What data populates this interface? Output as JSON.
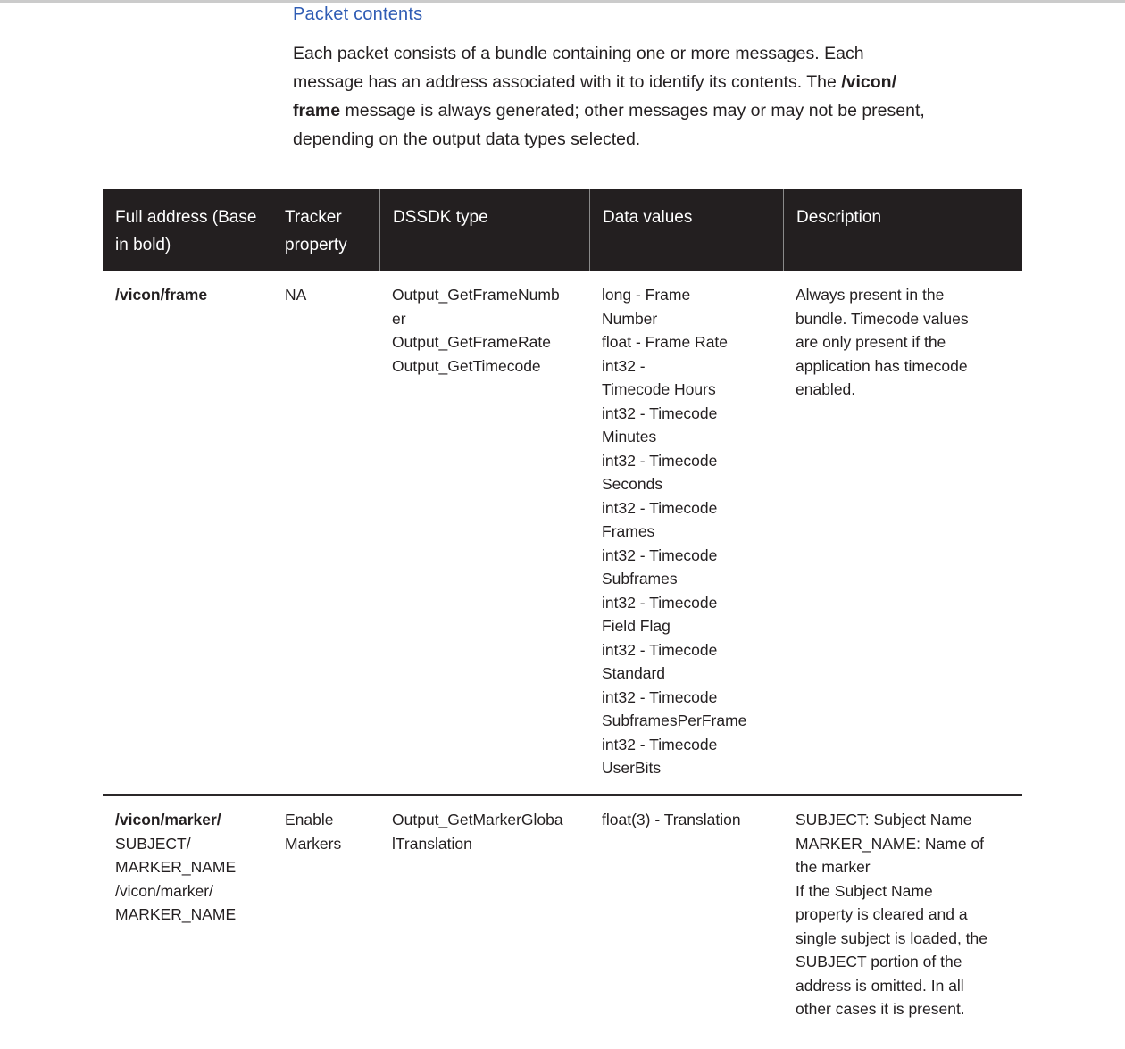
{
  "page": {
    "heading": "Packet contents",
    "intro": {
      "line1": "Each packet consists of a bundle containing one or more messages. Each",
      "line2_pre": "message has an address associated with it to identify its contents. The ",
      "line2_bold": "/vicon/",
      "line3_bold": "frame",
      "line3_post": " message is always generated; other messages may or may not be present,",
      "line4": "depending on the output data types selected."
    },
    "colors": {
      "accent_blue": "#2f5cb4",
      "table_header_bg": "#231f20",
      "body_text": "#231f20",
      "header_separator": "#8a8a8a",
      "row_divider": "#2b2829",
      "top_strip": "#cbcbcb"
    }
  },
  "table": {
    "headers": [
      "Full address (Base in bold)",
      "Tracker property",
      "DSSDK type",
      "Data values",
      "Description"
    ],
    "rows": [
      {
        "full_address_base": "/vicon/frame",
        "full_address_rest": "",
        "tracker_property": "NA",
        "dssdk_type": "Output_GetFrameNumber\nOutput_GetFrameRate\nOutput_GetTimecode",
        "data_values": "long - Frame Number\nfloat - Frame Rate\nint32 -\nTimecode Hours\nint32 - Timecode\nMinutes\nint32 - Timecode\nSeconds\nint32 - Timecode\nFrames\nint32 - Timecode\nSubframes\nint32 - Timecode\nField Flag\nint32 - Timecode\nStandard\nint32 - Timecode\nSubframesPerFrame\nint32 - Timecode\nUserBits",
        "description": "Always present in the bundle. Timecode values are only present if the application has timecode enabled."
      },
      {
        "full_address_base": "/vicon/marker/",
        "full_address_rest": "SUBJECT/\nMARKER_NAME\n/vicon/marker/\nMARKER_NAME",
        "tracker_property": "Enable Markers",
        "dssdk_type": "Output_GetMarkerGlobalTranslation",
        "data_values": "float(3) - Translation",
        "description": "SUBJECT: Subject Name\nMARKER_NAME: Name of the marker\nIf the Subject Name property is cleared and a single subject is loaded, the SUBJECT portion of the address is omitted. In all other cases it is present."
      }
    ]
  }
}
